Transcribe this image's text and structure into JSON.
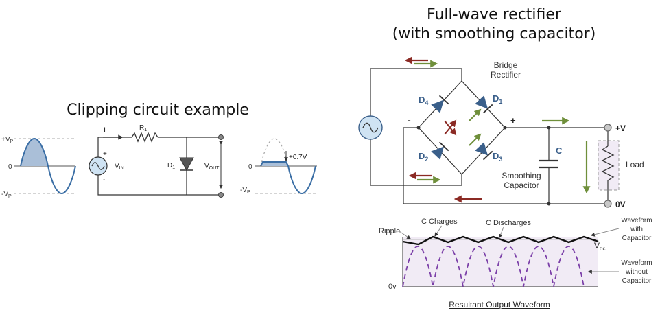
{
  "clipping": {
    "title": "Clipping circuit example",
    "input_wave": {
      "vp_label": "+V",
      "vp_sub": "P",
      "zero_label": "0",
      "vn_label": "-V",
      "vn_sub": "P"
    },
    "circuit": {
      "current_label": "I",
      "resistor_label": "R",
      "resistor_sub": "1",
      "source_label": "V",
      "source_sub": "IN",
      "plus": "+",
      "minus": "-",
      "diode_label": "D",
      "diode_sub": "1",
      "vout_label": "V",
      "vout_sub": "OUT"
    },
    "output_wave": {
      "zero_label": "0",
      "clip_label": "+0.7V",
      "vn_label": "-V",
      "vn_sub": "P"
    }
  },
  "rectifier": {
    "title_line1": "Full-wave rectifier",
    "title_line2": "(with smoothing capacitor)",
    "bridge_line1": "Bridge",
    "bridge_line2": "Rectifier",
    "d1": "D",
    "d1_sub": "1",
    "d2": "D",
    "d2_sub": "2",
    "d3": "D",
    "d3_sub": "3",
    "d4": "D",
    "d4_sub": "4",
    "minus": "-",
    "plus": "+",
    "cap_label": "C",
    "smoothing_line1": "Smoothing",
    "smoothing_line2": "Capacitor",
    "pos_terminal": "+V",
    "zero_terminal": "0V",
    "load_label": "Load"
  },
  "waveform": {
    "ripple": "Ripple",
    "c_charges": "C Charges",
    "c_discharges": "C Discharges",
    "with_cap": [
      "Waveform",
      "with",
      "Capacitor"
    ],
    "vdc": "V",
    "vdc_sub": "dc",
    "without_cap": [
      "Waveform",
      "without",
      "Capacitor"
    ],
    "zero": "0v",
    "caption": "Resultant Output Waveform"
  },
  "colors": {
    "wave_blue": "#3a6ea5",
    "wave_fill": "#aabfd8",
    "source_fill": "#cfe3f3",
    "diode_blue": "#3a5f8a",
    "arrow_red": "#8b2a24",
    "arrow_green": "#6f8f3b",
    "purple": "#7b3fa8",
    "panel_fill": "#f1ebf5"
  }
}
